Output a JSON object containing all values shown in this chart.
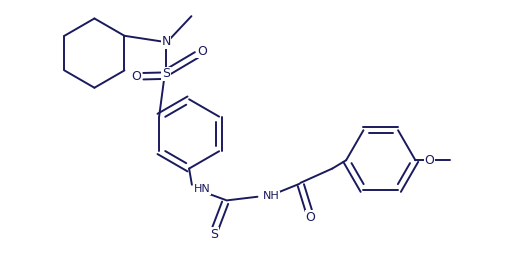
{
  "bg_color": "#ffffff",
  "line_color": "#1a1a5e",
  "line_width": 1.4,
  "figsize": [
    5.26,
    2.54
  ],
  "dpi": 100,
  "xlim": [
    0.0,
    10.5
  ],
  "ylim": [
    -0.5,
    5.0
  ]
}
